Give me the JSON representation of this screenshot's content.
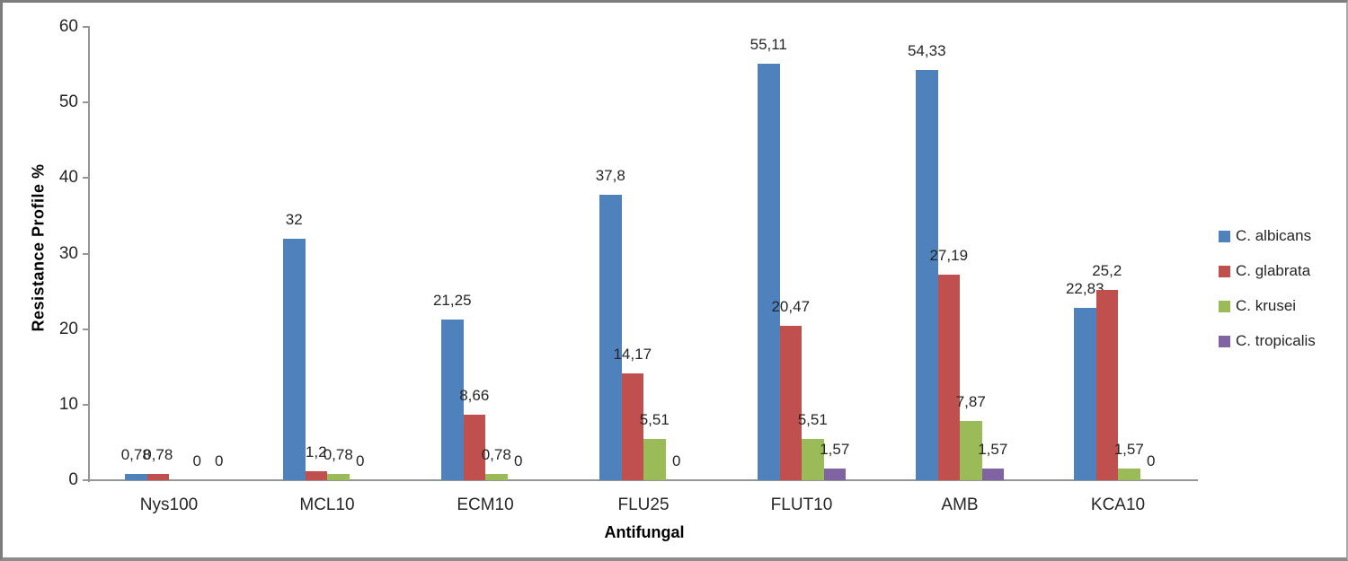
{
  "chart_data": {
    "type": "bar",
    "title": "",
    "xlabel": "Antifungal",
    "ylabel": "Resistance Profile %",
    "categories": [
      "Nys100",
      "MCL10",
      "ECM10",
      "FLU25",
      "FLUT10",
      "AMB",
      "KCA10"
    ],
    "series": [
      {
        "name": "C. albicans",
        "color": "#4F81BD",
        "values": [
          0.78,
          32,
          21.25,
          37.8,
          55.11,
          54.33,
          22.83
        ],
        "labels": [
          "0,78",
          "32",
          "21,25",
          "37,8",
          "55,11",
          "54,33",
          "22,83"
        ]
      },
      {
        "name": "C. glabrata",
        "color": "#C0504D",
        "values": [
          0.78,
          1.2,
          8.66,
          14.17,
          20.47,
          27.19,
          25.2
        ],
        "labels": [
          "0,78",
          "1,2",
          "8,66",
          "14,17",
          "20,47",
          "27,19",
          "25,2"
        ]
      },
      {
        "name": "C. krusei",
        "color": "#9BBB59",
        "values": [
          0,
          0.78,
          0.78,
          5.51,
          5.51,
          7.87,
          1.57
        ],
        "labels": [
          "0",
          "0,78",
          "0,78",
          "5,51",
          "5,51",
          "7,87",
          "1,57"
        ]
      },
      {
        "name": "C. tropicalis",
        "color": "#8064A2",
        "values": [
          0,
          0,
          0,
          0,
          1.57,
          1.57,
          0
        ],
        "labels": [
          "0",
          "0",
          "0",
          "0",
          "1,57",
          "1,57",
          "0"
        ]
      }
    ],
    "y_ticks": [
      0,
      10,
      20,
      30,
      40,
      50,
      60
    ],
    "ylim": [
      0,
      60
    ],
    "grid": false,
    "legend_position": "right",
    "legend_entries": [
      "C. albicans",
      "C. glabrata",
      "C. krusei",
      "C. tropicalis"
    ]
  },
  "colors": {
    "axis": "#969696",
    "text": "#262626",
    "frame": "#8c8c8c"
  }
}
